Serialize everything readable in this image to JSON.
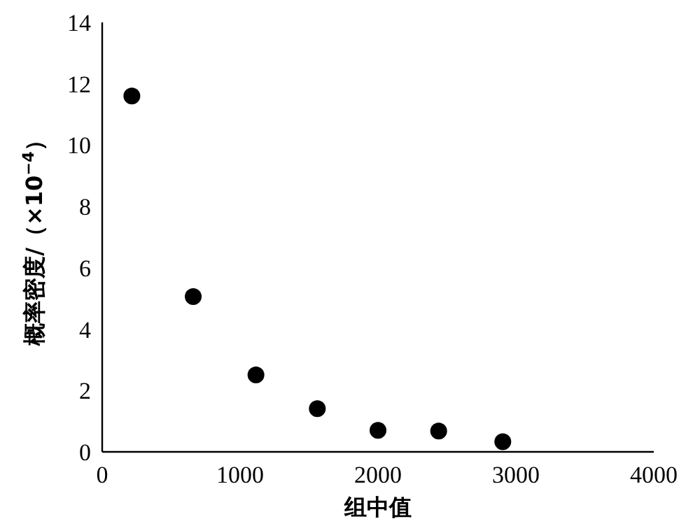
{
  "chart_data": {
    "type": "scatter",
    "xlabel": "组中值",
    "ylabel": "概率密度/（×10$^{−4}$）",
    "x": [
      215,
      660,
      1115,
      1560,
      2000,
      2440,
      2905
    ],
    "values": [
      11.6,
      5.06,
      2.51,
      1.41,
      0.7,
      0.68,
      0.33
    ],
    "color": "#000000",
    "marker": "circle",
    "xlim": [
      0,
      4000
    ],
    "xticks": [
      0,
      1000,
      2000,
      3000,
      4000
    ],
    "ylim": [
      0,
      14
    ],
    "yticks": [
      0,
      2,
      4,
      6,
      8,
      10,
      12,
      14
    ],
    "grid": false
  }
}
